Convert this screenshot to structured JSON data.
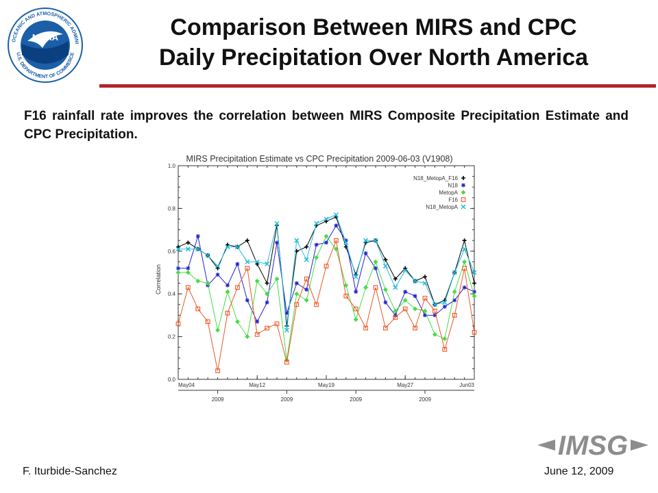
{
  "header": {
    "title_line1": "Comparison Between MIRS and CPC",
    "title_line2": "Daily Precipitation Over North America",
    "logo_text": "NOAA",
    "logo_ring_top": "NATIONAL OCEANIC AND ATMOSPHERIC ADMINISTRATION",
    "logo_ring_bottom": "U.S. DEPARTMENT OF COMMERCE"
  },
  "body": {
    "text": "F16 rainfall rate improves the correlation between MIRS Composite Precipitation Estimate and CPC Precipitation."
  },
  "footer": {
    "author": "F. Iturbide-Sanchez",
    "date": "June 12, 2009",
    "org_logo_text": "IMSG"
  },
  "colors": {
    "rule": "#b2242a",
    "noaa_blue": "#1a5fa8",
    "imsg_gray": "#8d8d8d"
  },
  "chart_data": {
    "type": "line",
    "title": "MIRS Precipitation Estimate vs CPC Precipitation 2009-06-03 (V1908)",
    "ylabel": "Correlation",
    "xlabel": "",
    "ylim": [
      0,
      1
    ],
    "yticks": [
      "0.0",
      "0.2",
      "0.4",
      "0.6",
      "0.8",
      "1.0"
    ],
    "xticks": [
      {
        "index": 0,
        "label": "May04"
      },
      {
        "index": 8,
        "label": "May12"
      },
      {
        "index": 15,
        "label": "May19"
      },
      {
        "index": 23,
        "label": "May27"
      },
      {
        "index": 30,
        "label": "Jun03"
      }
    ],
    "year_ticks": [
      {
        "index": 4,
        "label": "2009"
      },
      {
        "index": 11,
        "label": "2009"
      },
      {
        "index": 18,
        "label": "2009"
      },
      {
        "index": 25,
        "label": "2009"
      }
    ],
    "grid": false,
    "legend_position": "top-right",
    "x": [
      "May04",
      "May05",
      "May06",
      "May07",
      "May08",
      "May09",
      "May10",
      "May11",
      "May12",
      "May13",
      "May14",
      "May15",
      "May16",
      "May17",
      "May18",
      "May19",
      "May20",
      "May21",
      "May22",
      "May23",
      "May24",
      "May25",
      "May26",
      "May27",
      "May28",
      "May29",
      "May30",
      "May31",
      "Jun01",
      "Jun02",
      "Jun03"
    ],
    "series": [
      {
        "name": "N18_MetopA_F16",
        "color": "#000000",
        "marker": "plus",
        "values": [
          0.62,
          0.64,
          0.61,
          0.58,
          0.52,
          0.63,
          0.62,
          0.65,
          0.54,
          0.45,
          0.72,
          0.25,
          0.6,
          0.62,
          0.72,
          0.74,
          0.76,
          0.62,
          0.49,
          0.64,
          0.65,
          0.56,
          0.47,
          0.52,
          0.46,
          0.48,
          0.35,
          0.37,
          0.5,
          0.65,
          0.45
        ]
      },
      {
        "name": "N18",
        "color": "#2222cc",
        "marker": "star",
        "values": [
          0.52,
          0.52,
          0.67,
          0.44,
          0.49,
          0.44,
          0.54,
          0.37,
          0.27,
          0.36,
          0.64,
          0.31,
          0.45,
          0.42,
          0.63,
          0.64,
          0.72,
          0.65,
          0.41,
          0.59,
          0.52,
          0.36,
          0.3,
          0.41,
          0.39,
          0.3,
          0.3,
          0.34,
          0.37,
          0.43,
          0.41
        ]
      },
      {
        "name": "MetopA",
        "color": "#44dd44",
        "marker": "diamond",
        "values": [
          0.5,
          0.5,
          0.46,
          0.45,
          0.23,
          0.41,
          0.27,
          0.2,
          0.46,
          0.4,
          0.47,
          0.09,
          0.4,
          0.37,
          0.57,
          0.67,
          0.61,
          0.44,
          0.28,
          0.43,
          0.55,
          0.42,
          0.32,
          0.37,
          0.33,
          0.32,
          0.21,
          0.19,
          0.41,
          0.55,
          0.39
        ]
      },
      {
        "name": "F16",
        "color": "#ee5522",
        "marker": "square",
        "values": [
          0.26,
          0.43,
          0.33,
          0.27,
          0.04,
          0.31,
          0.43,
          0.52,
          0.21,
          0.24,
          0.26,
          0.08,
          0.35,
          0.47,
          0.35,
          0.53,
          0.65,
          0.39,
          0.33,
          0.24,
          0.43,
          0.24,
          0.29,
          0.33,
          0.24,
          0.38,
          0.32,
          0.14,
          0.3,
          0.52,
          0.22
        ]
      },
      {
        "name": "N18_MetopA",
        "color": "#22bbdd",
        "marker": "x",
        "values": [
          0.61,
          0.61,
          0.61,
          0.58,
          0.53,
          0.62,
          0.62,
          0.55,
          0.55,
          0.54,
          0.73,
          0.23,
          0.65,
          0.56,
          0.73,
          0.75,
          0.77,
          0.64,
          0.48,
          0.65,
          0.65,
          0.53,
          0.43,
          0.51,
          0.46,
          0.45,
          0.35,
          0.36,
          0.5,
          0.61,
          0.5
        ]
      }
    ]
  }
}
